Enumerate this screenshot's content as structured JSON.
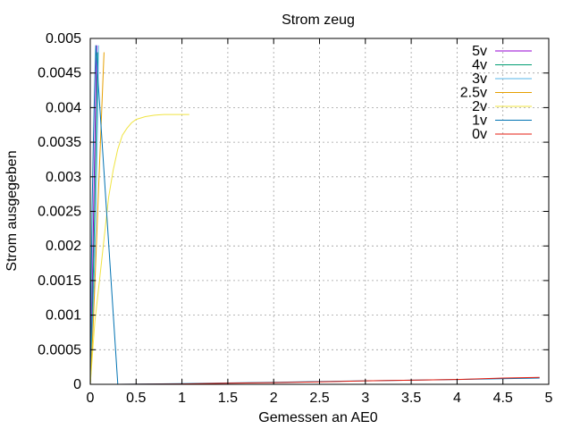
{
  "chart_data": {
    "type": "line",
    "title": "Strom zeug",
    "xlabel": "Gemessen an AE0",
    "ylabel": "Strom ausgegeben",
    "xlim": [
      0,
      5
    ],
    "ylim": [
      0,
      0.005
    ],
    "xticks": [
      0,
      0.5,
      1,
      1.5,
      2,
      2.5,
      3,
      3.5,
      4,
      4.5,
      5
    ],
    "xtick_labels": [
      "0",
      "0.5",
      "1",
      "1.5",
      "2",
      "2.5",
      "3",
      "3.5",
      "4",
      "4.5",
      "5"
    ],
    "yticks": [
      0,
      0.0005,
      0.001,
      0.0015,
      0.002,
      0.0025,
      0.003,
      0.0035,
      0.004,
      0.0045,
      0.005
    ],
    "ytick_labels": [
      "0",
      "0.0005",
      "0.001",
      "0.0015",
      "0.002",
      "0.0025",
      "0.003",
      "0.0035",
      "0.004",
      "0.0045",
      "0.005"
    ],
    "grid": true,
    "legend_position": "top-right",
    "series": [
      {
        "name": "5v",
        "color": "#9400d3",
        "x": [
          0,
          0.02,
          0.04,
          0.06,
          0.07
        ],
        "y": [
          0,
          0.0012,
          0.0028,
          0.0042,
          0.0049
        ]
      },
      {
        "name": "4v",
        "color": "#009e73",
        "x": [
          0,
          0.025,
          0.05,
          0.07,
          0.08
        ],
        "y": [
          0,
          0.0011,
          0.0026,
          0.004,
          0.0048
        ]
      },
      {
        "name": "3v",
        "color": "#56b4e9",
        "x": [
          0,
          0.03,
          0.06,
          0.08,
          0.09
        ],
        "y": [
          0,
          0.001,
          0.0024,
          0.0038,
          0.0049
        ]
      },
      {
        "name": "2.5v",
        "color": "#e69f00",
        "x": [
          0,
          0.03,
          0.06,
          0.09,
          0.12,
          0.15
        ],
        "y": [
          0,
          0.0008,
          0.0018,
          0.0028,
          0.0038,
          0.0048
        ]
      },
      {
        "name": "2v",
        "color": "#f0e442",
        "x": [
          0,
          0.05,
          0.1,
          0.15,
          0.2,
          0.25,
          0.3,
          0.35,
          0.4,
          0.45,
          0.5,
          0.6,
          0.7,
          0.8,
          0.9,
          1.0,
          1.08
        ],
        "y": [
          0,
          0.0009,
          0.0015,
          0.0021,
          0.0027,
          0.0031,
          0.0034,
          0.0036,
          0.0037,
          0.00378,
          0.00383,
          0.00387,
          0.00389,
          0.0039,
          0.0039,
          0.0039,
          0.0039
        ]
      },
      {
        "name": "1v",
        "color": "#0072b2",
        "x": [
          0,
          0.01,
          0.02,
          0.035,
          0.05,
          0.06,
          0.3,
          1,
          2,
          3,
          3.5,
          4,
          4.9
        ],
        "y": [
          0,
          0.0014,
          0.0026,
          0.0036,
          0.0044,
          0.0049,
          0,
          1e-05,
          3e-05,
          5e-05,
          6e-05,
          7e-05,
          9e-05
        ]
      },
      {
        "name": "0v",
        "color": "#e51e10",
        "x": [
          0.3,
          1,
          1.5,
          2,
          2.5,
          3,
          3.5,
          4,
          4.5,
          4.9
        ],
        "y": [
          0,
          5e-06,
          1.5e-05,
          2.5e-05,
          3.5e-05,
          5e-05,
          6e-05,
          7e-05,
          9e-05,
          0.0001
        ]
      }
    ]
  }
}
